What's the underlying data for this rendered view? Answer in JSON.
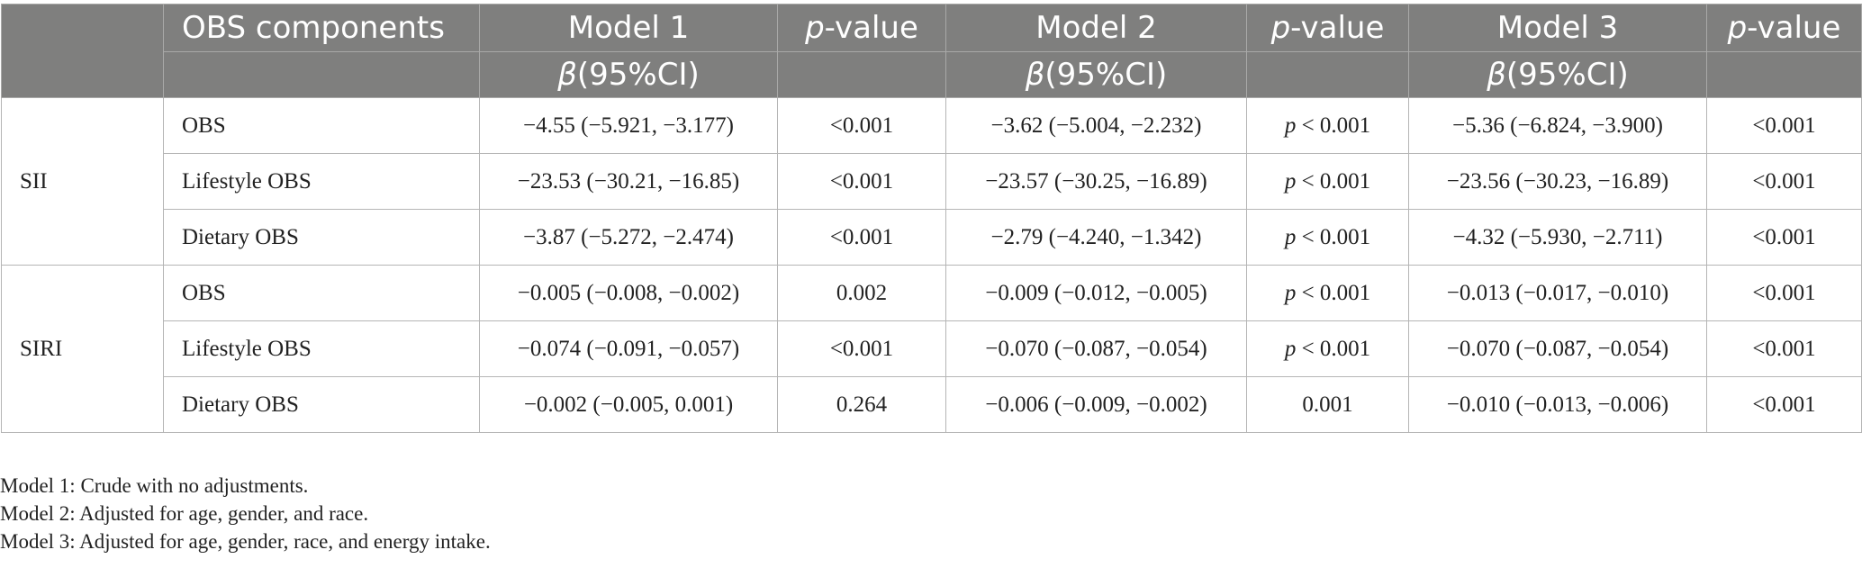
{
  "header": {
    "components_label": "OBS components",
    "model1": "Model 1",
    "model2": "Model 2",
    "model3": "Model 3",
    "p_italic": "p",
    "p_suffix": "-value",
    "beta_italic": "β",
    "beta_suffix": "(95%CI)"
  },
  "groups": [
    {
      "label": "SII",
      "rows": [
        {
          "component": "OBS",
          "m1": "−4.55 (−5.921, −3.177)",
          "p1": "<0.001",
          "m2": "−3.62 (−5.004, −2.232)",
          "p2": "p < 0.001",
          "m3": "−5.36 (−6.824, −3.900)",
          "p3": "<0.001"
        },
        {
          "component": "Lifestyle OBS",
          "m1": "−23.53 (−30.21, −16.85)",
          "p1": "<0.001",
          "m2": "−23.57 (−30.25, −16.89)",
          "p2": "p < 0.001",
          "m3": "−23.56 (−30.23, −16.89)",
          "p3": "<0.001"
        },
        {
          "component": "Dietary OBS",
          "m1": "−3.87 (−5.272, −2.474)",
          "p1": "<0.001",
          "m2": "−2.79 (−4.240, −1.342)",
          "p2": "p < 0.001",
          "m3": "−4.32 (−5.930, −2.711)",
          "p3": "<0.001"
        }
      ]
    },
    {
      "label": "SIRI",
      "rows": [
        {
          "component": "OBS",
          "m1": "−0.005 (−0.008, −0.002)",
          "p1": "0.002",
          "m2": "−0.009 (−0.012, −0.005)",
          "p2": "p < 0.001",
          "m3": "−0.013 (−0.017, −0.010)",
          "p3": "<0.001"
        },
        {
          "component": "Lifestyle OBS",
          "m1": "−0.074 (−0.091, −0.057)",
          "p1": "<0.001",
          "m2": "−0.070 (−0.087, −0.054)",
          "p2": "p < 0.001",
          "m3": "−0.070 (−0.087, −0.054)",
          "p3": "<0.001"
        },
        {
          "component": "Dietary OBS",
          "m1": "−0.002 (−0.005, 0.001)",
          "p1": "0.264",
          "m2": "−0.006 (−0.009, −0.002)",
          "p2": "0.001",
          "m3": "−0.010 (−0.013, −0.006)",
          "p3": "<0.001"
        }
      ]
    }
  ],
  "notes": [
    "Model 1: Crude with no adjustments.",
    "Model 2: Adjusted for age, gender, and race.",
    "Model 3: Adjusted for age, gender, race, and energy intake."
  ]
}
